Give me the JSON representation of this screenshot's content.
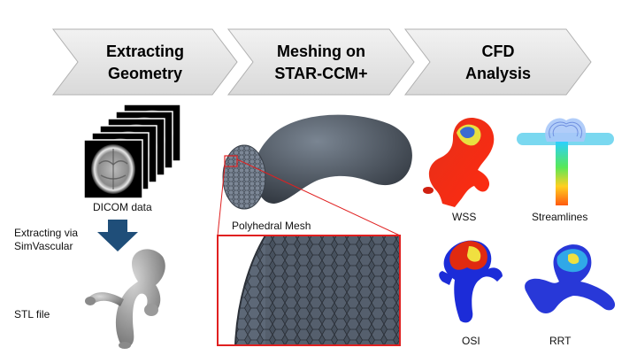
{
  "steps": [
    {
      "line1": "Extracting",
      "line2": "Geometry"
    },
    {
      "line1": "Meshing on",
      "line2": "STAR-CCM+"
    },
    {
      "line1": "CFD",
      "line2": "Analysis"
    }
  ],
  "labels": {
    "dicom": "DICOM data",
    "extracting_via_1": "Extracting via",
    "extracting_via_2": "SimVascular",
    "stl": "STL file",
    "polyhedral": "Polyhedral Mesh",
    "wss": "WSS",
    "streamlines": "Streamlines",
    "osi": "OSI",
    "rrt": "RRT"
  },
  "colors": {
    "chevron_fill": "#e6e6e6",
    "arrow_blue": "#1f4e79",
    "zoom_red": "#e02020",
    "mesh_dark": "#4a5460"
  }
}
